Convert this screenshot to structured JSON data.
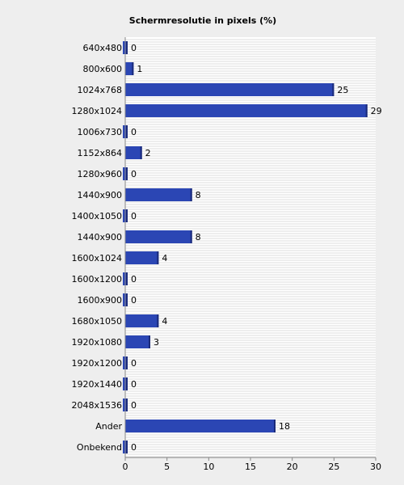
{
  "chart_data": {
    "type": "bar",
    "orientation": "horizontal",
    "title": "Schermresolutie in pixels (%)",
    "xlabel": "",
    "ylabel": "",
    "categories": [
      "640x480",
      "800x600",
      "1024x768",
      "1280x1024",
      "1006x730",
      "1152x864",
      "1280x960",
      "1440x900",
      "1400x1050",
      "1440x900",
      "1600x1024",
      "1600x1200",
      "1600x900",
      "1680x1050",
      "1920x1080",
      "1920x1200",
      "1920x1440",
      "2048x1536",
      "Ander",
      "Onbekend"
    ],
    "values": [
      0,
      1,
      25,
      29,
      0,
      2,
      0,
      8,
      0,
      8,
      4,
      0,
      0,
      4,
      3,
      0,
      0,
      0,
      18,
      0
    ],
    "xlim": [
      0,
      30
    ],
    "xticks": [
      0,
      5,
      10,
      15,
      20,
      25,
      30
    ],
    "grid": true,
    "colors": {
      "bar": "#2b46b4",
      "bar_dark": "#1a2a7a",
      "plot_bg": "#ffffff",
      "grid": "#dddddd",
      "page_bg": "#eeeeee"
    }
  }
}
